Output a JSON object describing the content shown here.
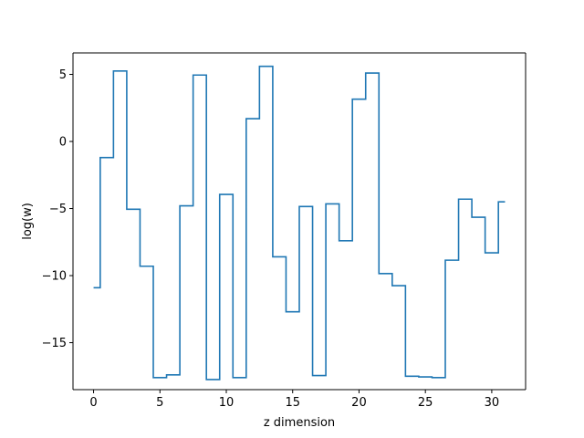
{
  "chart_data": {
    "type": "line",
    "drawstyle": "steps-mid",
    "title": "",
    "xlabel": "z dimension",
    "ylabel": "log(w)",
    "xlim": [
      -1.55,
      32.55
    ],
    "ylim": [
      -18.5,
      6.6
    ],
    "xticks": [
      0,
      5,
      10,
      15,
      20,
      25,
      30
    ],
    "yticks": [
      -15,
      -10,
      -5,
      0,
      5
    ],
    "ytick_labels": [
      "−15",
      "−10",
      "−5",
      "0",
      "5"
    ],
    "grid": false,
    "line_color": "#1f77b4",
    "series": [
      {
        "x": [
          0,
          1,
          2,
          3,
          4,
          5,
          6,
          7,
          8,
          9,
          10,
          11,
          12,
          13,
          14,
          15,
          16,
          17,
          18,
          19,
          20,
          21,
          22,
          23,
          24,
          25,
          26,
          27,
          28,
          29,
          30,
          31
        ],
        "values": [
          -10.9,
          -1.2,
          5.25,
          -5.05,
          -9.3,
          -17.6,
          -17.4,
          -4.8,
          4.95,
          -17.75,
          -3.95,
          -17.6,
          1.7,
          5.6,
          -8.6,
          -12.7,
          -4.85,
          -17.45,
          -4.65,
          -7.4,
          3.15,
          5.1,
          -9.85,
          -10.75,
          -17.5,
          -17.55,
          -17.6,
          -8.85,
          -4.3,
          -5.65,
          -8.3,
          -4.5
        ]
      }
    ]
  }
}
